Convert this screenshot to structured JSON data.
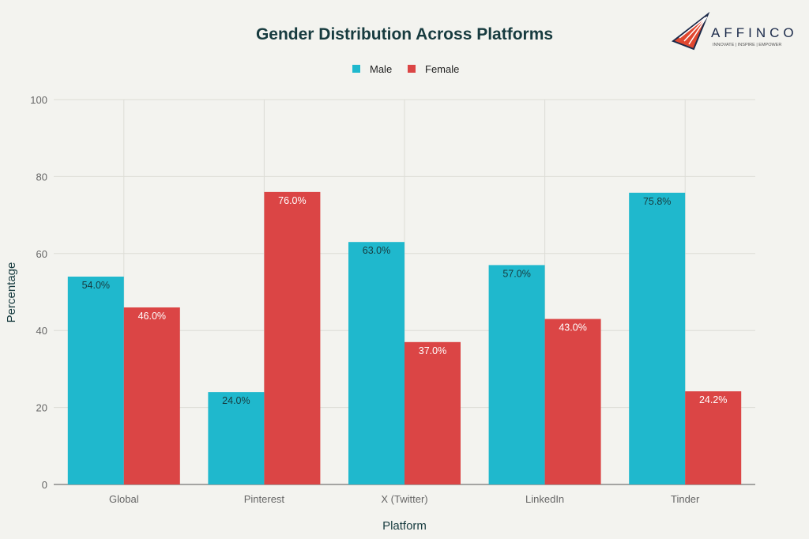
{
  "chart_data": {
    "type": "bar",
    "title": "Gender Distribution Across Platforms",
    "xlabel": "Platform",
    "ylabel": "Percentage",
    "categories": [
      "Global",
      "Pinterest",
      "X (Twitter)",
      "LinkedIn",
      "Tinder"
    ],
    "series": [
      {
        "name": "Male",
        "color": "#1FB8CD",
        "values": [
          54.0,
          24.0,
          63.0,
          57.0,
          75.8
        ],
        "labels": [
          "54.0%",
          "24.0%",
          "63.0%",
          "57.0%",
          "75.8%"
        ],
        "label_color": "#173b3f"
      },
      {
        "name": "Female",
        "color": "#DB4545",
        "values": [
          46.0,
          76.0,
          37.0,
          43.0,
          24.2
        ],
        "labels": [
          "46.0%",
          "76.0%",
          "37.0%",
          "43.0%",
          "24.2%"
        ],
        "label_color": "#ffffff"
      }
    ],
    "ylim": [
      0,
      100
    ],
    "yticks": [
      "0",
      "20",
      "40",
      "60",
      "80",
      "100"
    ],
    "grid": true,
    "legend_position": "top-center"
  },
  "logo": {
    "name": "AFFINCO",
    "tagline": "INNOVATE | INSPIRE | EMPOWER"
  }
}
